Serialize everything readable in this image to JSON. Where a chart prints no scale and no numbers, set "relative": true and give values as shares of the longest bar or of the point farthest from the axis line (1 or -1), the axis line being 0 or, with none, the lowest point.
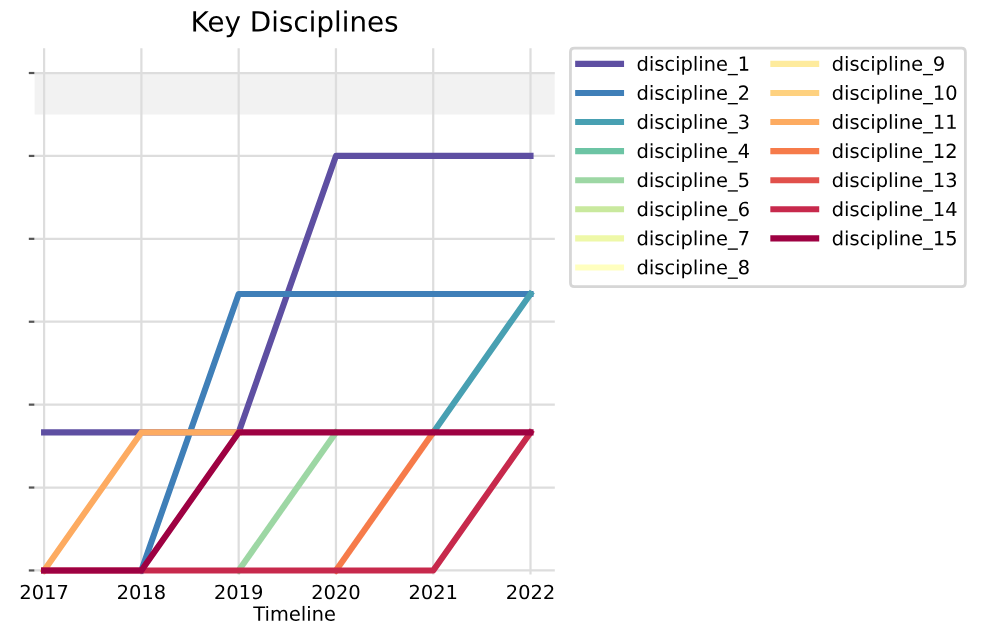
{
  "chart_data": {
    "type": "line",
    "title": "Key Disciplines",
    "xlabel": "Timeline",
    "relative": true,
    "x": [
      2017,
      2018,
      2019,
      2020,
      2021,
      2022
    ],
    "xlim": [
      2016.9,
      2022.25
    ],
    "xticks": [
      2017,
      2018,
      2019,
      2020,
      2021,
      2022
    ],
    "grid": true,
    "legend": "top right",
    "marker": "none",
    "line_style": "solid",
    "bands": [
      {
        "axis": "y",
        "from": 1.1,
        "to": 1.2,
        "color": "#f2f2f2"
      }
    ],
    "series": [
      {
        "name": "discipline_1",
        "color": "#5e4fa2",
        "values": [
          0.333,
          0.333,
          0.333,
          1,
          1,
          1
        ]
      },
      {
        "name": "discipline_2",
        "color": "#3f7fb8",
        "values": [
          null,
          0,
          0.667,
          0.667,
          0.667,
          0.667
        ]
      },
      {
        "name": "discipline_3",
        "color": "#48a0b2",
        "values": [
          null,
          null,
          null,
          null,
          0.333,
          0.667
        ]
      },
      {
        "name": "discipline_4",
        "color": "#6cc4a4",
        "values": [
          null,
          null,
          null,
          null,
          null,
          null
        ]
      },
      {
        "name": "discipline_5",
        "color": "#9dd7a4",
        "values": [
          null,
          null,
          0,
          0.333,
          null,
          null
        ]
      },
      {
        "name": "discipline_6",
        "color": "#c9e99e",
        "values": [
          null,
          null,
          null,
          null,
          null,
          null
        ]
      },
      {
        "name": "discipline_7",
        "color": "#eef8a8",
        "values": [
          null,
          null,
          null,
          null,
          null,
          null
        ]
      },
      {
        "name": "discipline_8",
        "color": "#ffffbf",
        "values": [
          null,
          null,
          null,
          null,
          null,
          null
        ]
      },
      {
        "name": "discipline_9",
        "color": "#feeb9d",
        "values": [
          null,
          null,
          null,
          null,
          null,
          null
        ]
      },
      {
        "name": "discipline_10",
        "color": "#fed17f",
        "values": [
          null,
          null,
          null,
          null,
          null,
          null
        ]
      },
      {
        "name": "discipline_11",
        "color": "#fdab61",
        "values": [
          0,
          0.333,
          0.333,
          null,
          null,
          null
        ]
      },
      {
        "name": "discipline_12",
        "color": "#f67b4a",
        "values": [
          null,
          null,
          null,
          0,
          0.333,
          null
        ]
      },
      {
        "name": "discipline_13",
        "color": "#e1504b",
        "values": [
          null,
          null,
          null,
          null,
          null,
          null
        ]
      },
      {
        "name": "discipline_14",
        "color": "#c7294c",
        "values": [
          0,
          0,
          0,
          0,
          0,
          0.333
        ]
      },
      {
        "name": "discipline_15",
        "color": "#9e0142",
        "values": [
          0,
          0,
          0.333,
          0.333,
          0.333,
          0.333
        ]
      }
    ]
  }
}
